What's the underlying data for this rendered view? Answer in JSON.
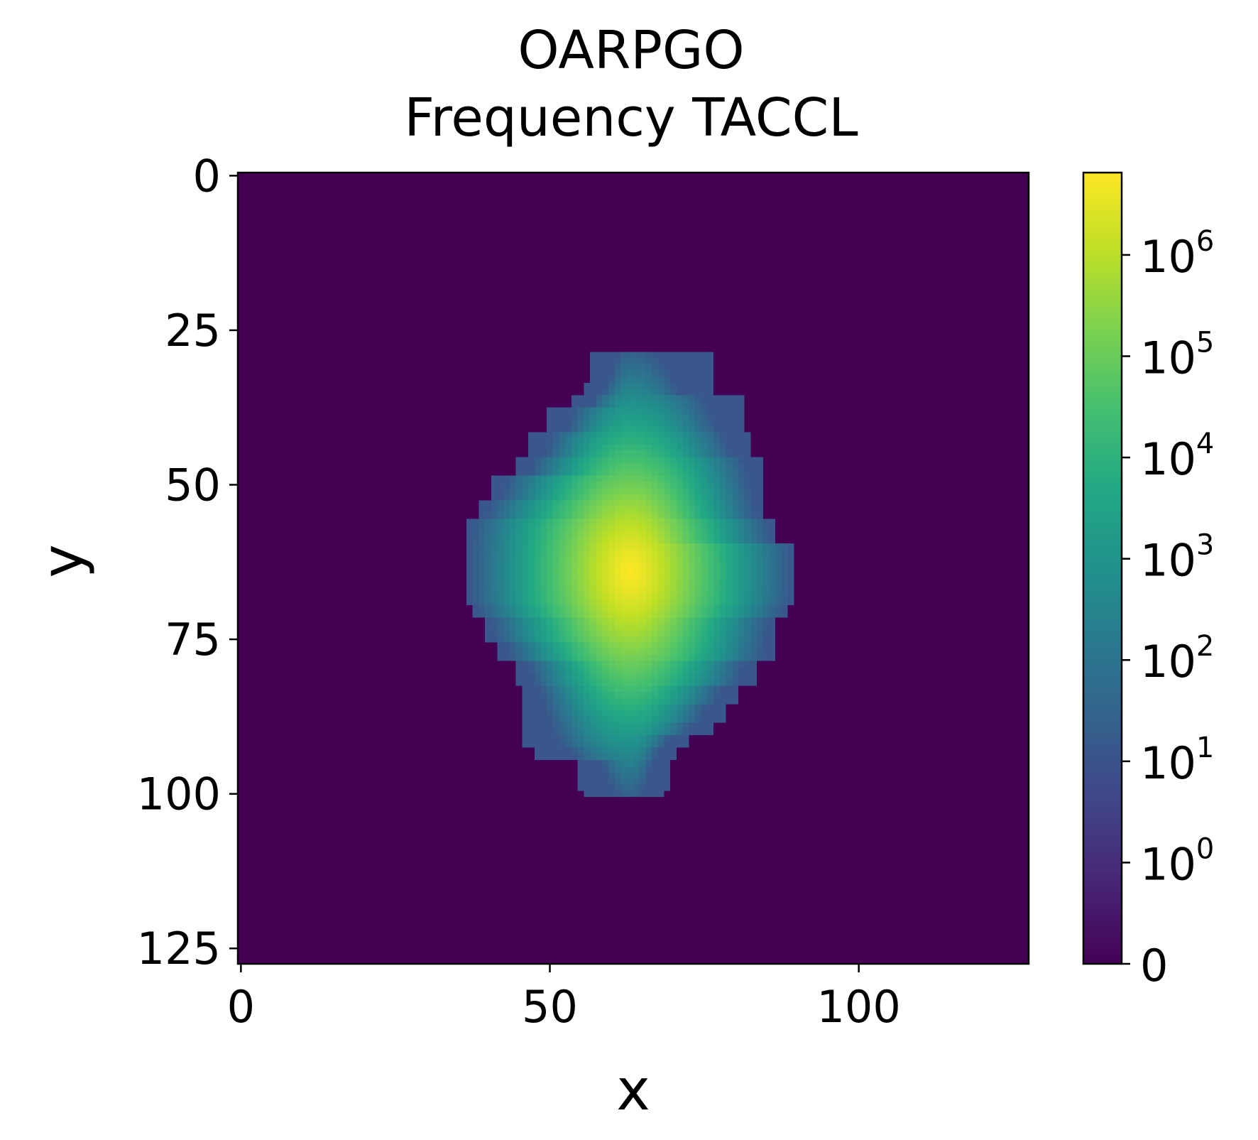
{
  "chart_data": {
    "type": "heatmap",
    "title_line1": "OARPGO",
    "title_line2": "Frequency TACCL",
    "xlabel": "x",
    "ylabel": "y",
    "x_ticks": [
      0,
      50,
      100
    ],
    "y_ticks": [
      0,
      25,
      50,
      75,
      100,
      125
    ],
    "grid_size": [
      128,
      128
    ],
    "xlim": [
      0,
      127
    ],
    "ylim": [
      127,
      0
    ],
    "colormap": "viridis",
    "color_scale": "symlog",
    "colorbar": {
      "ticks": [
        {
          "value": 0,
          "base": "0",
          "exp": ""
        },
        {
          "value": 1,
          "base": "10",
          "exp": "0"
        },
        {
          "value": 10,
          "base": "10",
          "exp": "1"
        },
        {
          "value": 100,
          "base": "10",
          "exp": "2"
        },
        {
          "value": 1000,
          "base": "10",
          "exp": "3"
        },
        {
          "value": 10000,
          "base": "10",
          "exp": "4"
        },
        {
          "value": 100000,
          "base": "10",
          "exp": "5"
        },
        {
          "value": 1000000,
          "base": "10",
          "exp": "6"
        }
      ],
      "max": 6500000
    },
    "peak": {
      "x": 63,
      "y": 64,
      "value": 6500000
    },
    "boundary_rows": [
      {
        "y": 29,
        "x_min": 57,
        "x_max": 76
      },
      {
        "y": 31,
        "x_min": 57,
        "x_max": 76
      },
      {
        "y": 34,
        "x_min": 56,
        "x_max": 76
      },
      {
        "y": 36,
        "x_min": 54,
        "x_max": 81
      },
      {
        "y": 38,
        "x_min": 50,
        "x_max": 81
      },
      {
        "y": 42,
        "x_min": 47,
        "x_max": 82
      },
      {
        "y": 46,
        "x_min": 45,
        "x_max": 84
      },
      {
        "y": 49,
        "x_min": 41,
        "x_max": 84
      },
      {
        "y": 53,
        "x_min": 39,
        "x_max": 84
      },
      {
        "y": 56,
        "x_min": 37,
        "x_max": 86
      },
      {
        "y": 60,
        "x_min": 37,
        "x_max": 89
      },
      {
        "y": 66,
        "x_min": 37,
        "x_max": 89
      },
      {
        "y": 70,
        "x_min": 38,
        "x_max": 88
      },
      {
        "y": 72,
        "x_min": 40,
        "x_max": 86
      },
      {
        "y": 76,
        "x_min": 42,
        "x_max": 86
      },
      {
        "y": 79,
        "x_min": 45,
        "x_max": 83
      },
      {
        "y": 83,
        "x_min": 46,
        "x_max": 80
      },
      {
        "y": 86,
        "x_min": 46,
        "x_max": 78
      },
      {
        "y": 89,
        "x_min": 46,
        "x_max": 76
      },
      {
        "y": 91,
        "x_min": 46,
        "x_max": 72
      },
      {
        "y": 93,
        "x_min": 48,
        "x_max": 70
      },
      {
        "y": 95,
        "x_min": 55,
        "x_max": 69
      },
      {
        "y": 97,
        "x_min": 55,
        "x_max": 69
      },
      {
        "y": 100,
        "x_min": 56,
        "x_max": 68
      }
    ]
  }
}
